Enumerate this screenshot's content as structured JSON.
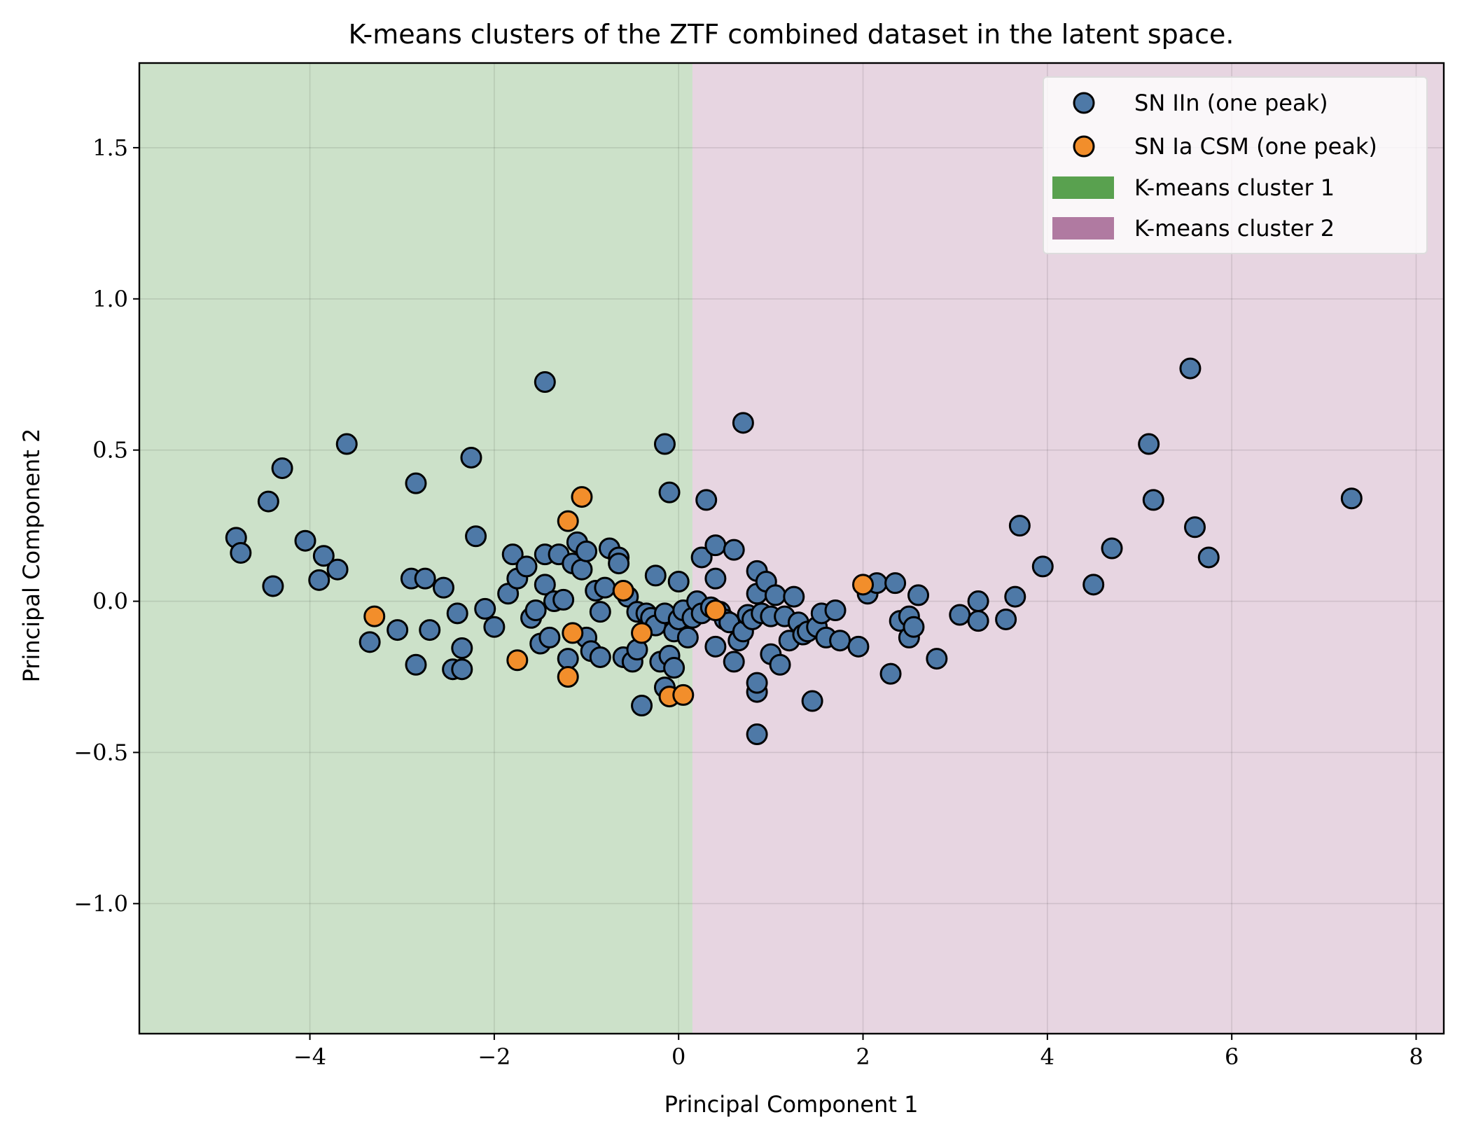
{
  "chart_data": {
    "type": "scatter",
    "title": "K-means clusters of the ZTF combined dataset in the latent space.",
    "xlabel": "Principal Component 1",
    "ylabel": "Principal Component 2",
    "xlim": [
      -5.85,
      8.3
    ],
    "ylim": [
      -1.43,
      1.78
    ],
    "xticks": [
      -4,
      -2,
      0,
      2,
      4,
      6,
      8
    ],
    "xtick_labels": [
      "−4",
      "−2",
      "0",
      "2",
      "4",
      "6",
      "8"
    ],
    "yticks": [
      1.5,
      1.0,
      0.5,
      0.0,
      -0.5,
      -1.0
    ],
    "ytick_labels": [
      "1.5",
      "1.0",
      "0.5",
      "0.0",
      "−0.5",
      "−1.0"
    ],
    "grid": true,
    "legend_position": "top-right",
    "regions": [
      {
        "name": "K-means cluster 1",
        "x_from": -5.85,
        "x_to": 0.15,
        "color": "#cce1c9",
        "legend_color": "#59a14f"
      },
      {
        "name": "K-means cluster 2",
        "x_from": 0.15,
        "x_to": 8.3,
        "color": "#e7d5e1",
        "legend_color": "#b07aa1"
      }
    ],
    "series": [
      {
        "name": "SN IIn (one peak)",
        "color": "#4e79a7",
        "points": [
          [
            -4.8,
            0.21
          ],
          [
            -4.75,
            0.16
          ],
          [
            -4.45,
            0.33
          ],
          [
            -4.4,
            0.05
          ],
          [
            -4.3,
            0.44
          ],
          [
            -4.05,
            0.2
          ],
          [
            -3.85,
            0.15
          ],
          [
            -3.7,
            0.105
          ],
          [
            -3.9,
            0.07
          ],
          [
            -3.6,
            0.52
          ],
          [
            -3.35,
            -0.135
          ],
          [
            -3.05,
            -0.095
          ],
          [
            -2.9,
            0.075
          ],
          [
            -2.85,
            0.39
          ],
          [
            -2.85,
            -0.21
          ],
          [
            -2.75,
            0.075
          ],
          [
            -2.7,
            -0.095
          ],
          [
            -2.55,
            0.045
          ],
          [
            -2.45,
            -0.225
          ],
          [
            -2.4,
            -0.04
          ],
          [
            -2.35,
            -0.225
          ],
          [
            -2.35,
            -0.155
          ],
          [
            -2.25,
            0.475
          ],
          [
            -2.2,
            0.215
          ],
          [
            -2.1,
            -0.025
          ],
          [
            -2.0,
            -0.085
          ],
          [
            -1.85,
            0.025
          ],
          [
            -1.8,
            0.155
          ],
          [
            -1.75,
            0.075
          ],
          [
            -1.65,
            0.115
          ],
          [
            -1.6,
            -0.055
          ],
          [
            -1.55,
            -0.03
          ],
          [
            -1.5,
            -0.14
          ],
          [
            -1.45,
            0.155
          ],
          [
            -1.45,
            0.725
          ],
          [
            -1.45,
            0.055
          ],
          [
            -1.4,
            -0.12
          ],
          [
            -1.35,
            0.0
          ],
          [
            -1.3,
            0.155
          ],
          [
            -1.25,
            0.005
          ],
          [
            -1.2,
            -0.19
          ],
          [
            -1.15,
            0.125
          ],
          [
            -1.1,
            0.195
          ],
          [
            -1.05,
            0.105
          ],
          [
            -1.0,
            -0.12
          ],
          [
            -1.0,
            0.165
          ],
          [
            -0.95,
            -0.165
          ],
          [
            -0.9,
            0.035
          ],
          [
            -0.85,
            -0.185
          ],
          [
            -0.85,
            -0.035
          ],
          [
            -0.8,
            0.045
          ],
          [
            -0.75,
            0.175
          ],
          [
            -0.65,
            0.145
          ],
          [
            -0.65,
            0.125
          ],
          [
            -0.6,
            -0.185
          ],
          [
            -0.55,
            0.015
          ],
          [
            -0.5,
            -0.2
          ],
          [
            -0.45,
            -0.16
          ],
          [
            -0.45,
            -0.035
          ],
          [
            -0.4,
            -0.345
          ],
          [
            -0.35,
            -0.04
          ],
          [
            -0.3,
            -0.055
          ],
          [
            -0.25,
            -0.08
          ],
          [
            -0.25,
            0.085
          ],
          [
            -0.2,
            -0.2
          ],
          [
            -0.15,
            0.52
          ],
          [
            -0.15,
            -0.285
          ],
          [
            -0.15,
            -0.04
          ],
          [
            -0.1,
            -0.18
          ],
          [
            -0.1,
            0.36
          ],
          [
            -0.05,
            -0.22
          ],
          [
            -0.05,
            -0.1
          ],
          [
            0.0,
            -0.06
          ],
          [
            0.0,
            0.065
          ],
          [
            0.05,
            -0.03
          ],
          [
            0.1,
            -0.12
          ],
          [
            0.15,
            -0.055
          ],
          [
            0.2,
            0.0
          ],
          [
            0.25,
            -0.04
          ],
          [
            0.25,
            0.145
          ],
          [
            0.3,
            0.335
          ],
          [
            0.35,
            -0.02
          ],
          [
            0.4,
            -0.15
          ],
          [
            0.4,
            0.075
          ],
          [
            0.4,
            0.185
          ],
          [
            0.45,
            -0.035
          ],
          [
            0.5,
            -0.06
          ],
          [
            0.55,
            -0.07
          ],
          [
            0.6,
            0.17
          ],
          [
            0.6,
            -0.2
          ],
          [
            0.65,
            -0.13
          ],
          [
            0.7,
            0.59
          ],
          [
            0.7,
            -0.1
          ],
          [
            0.75,
            -0.045
          ],
          [
            0.8,
            -0.06
          ],
          [
            0.85,
            -0.3
          ],
          [
            0.85,
            0.025
          ],
          [
            0.85,
            -0.44
          ],
          [
            0.85,
            -0.27
          ],
          [
            0.85,
            0.1
          ],
          [
            0.9,
            -0.04
          ],
          [
            0.95,
            0.065
          ],
          [
            1.0,
            -0.175
          ],
          [
            1.0,
            -0.05
          ],
          [
            1.05,
            0.02
          ],
          [
            1.1,
            -0.21
          ],
          [
            1.15,
            -0.05
          ],
          [
            1.2,
            -0.13
          ],
          [
            1.25,
            0.015
          ],
          [
            1.3,
            -0.07
          ],
          [
            1.35,
            -0.11
          ],
          [
            1.4,
            -0.1
          ],
          [
            1.45,
            -0.33
          ],
          [
            1.5,
            -0.085
          ],
          [
            1.55,
            -0.04
          ],
          [
            1.6,
            -0.12
          ],
          [
            1.7,
            -0.03
          ],
          [
            1.75,
            -0.13
          ],
          [
            1.95,
            -0.15
          ],
          [
            2.05,
            0.025
          ],
          [
            2.15,
            0.06
          ],
          [
            2.3,
            -0.24
          ],
          [
            2.35,
            0.06
          ],
          [
            2.4,
            -0.065
          ],
          [
            2.5,
            -0.05
          ],
          [
            2.5,
            -0.12
          ],
          [
            2.55,
            -0.085
          ],
          [
            2.6,
            0.02
          ],
          [
            2.8,
            -0.19
          ],
          [
            3.05,
            -0.045
          ],
          [
            3.25,
            0.0
          ],
          [
            3.25,
            -0.065
          ],
          [
            3.55,
            -0.06
          ],
          [
            3.65,
            0.015
          ],
          [
            3.7,
            0.25
          ],
          [
            3.95,
            0.115
          ],
          [
            4.5,
            0.055
          ],
          [
            4.7,
            0.175
          ],
          [
            5.1,
            0.52
          ],
          [
            5.15,
            0.335
          ],
          [
            5.55,
            0.77
          ],
          [
            5.6,
            0.245
          ],
          [
            5.75,
            0.145
          ],
          [
            7.3,
            0.34
          ]
        ]
      },
      {
        "name": "SN Ia CSM (one peak)",
        "color": "#f28e2b",
        "points": [
          [
            -3.3,
            -0.05
          ],
          [
            -1.75,
            -0.195
          ],
          [
            -1.2,
            0.265
          ],
          [
            -1.2,
            -0.25
          ],
          [
            -1.15,
            -0.105
          ],
          [
            -1.05,
            0.345
          ],
          [
            -0.6,
            0.035
          ],
          [
            -0.4,
            -0.105
          ],
          [
            -0.1,
            -0.315
          ],
          [
            0.05,
            -0.31
          ],
          [
            0.4,
            -0.03
          ],
          [
            2.0,
            0.055
          ]
        ]
      }
    ]
  }
}
